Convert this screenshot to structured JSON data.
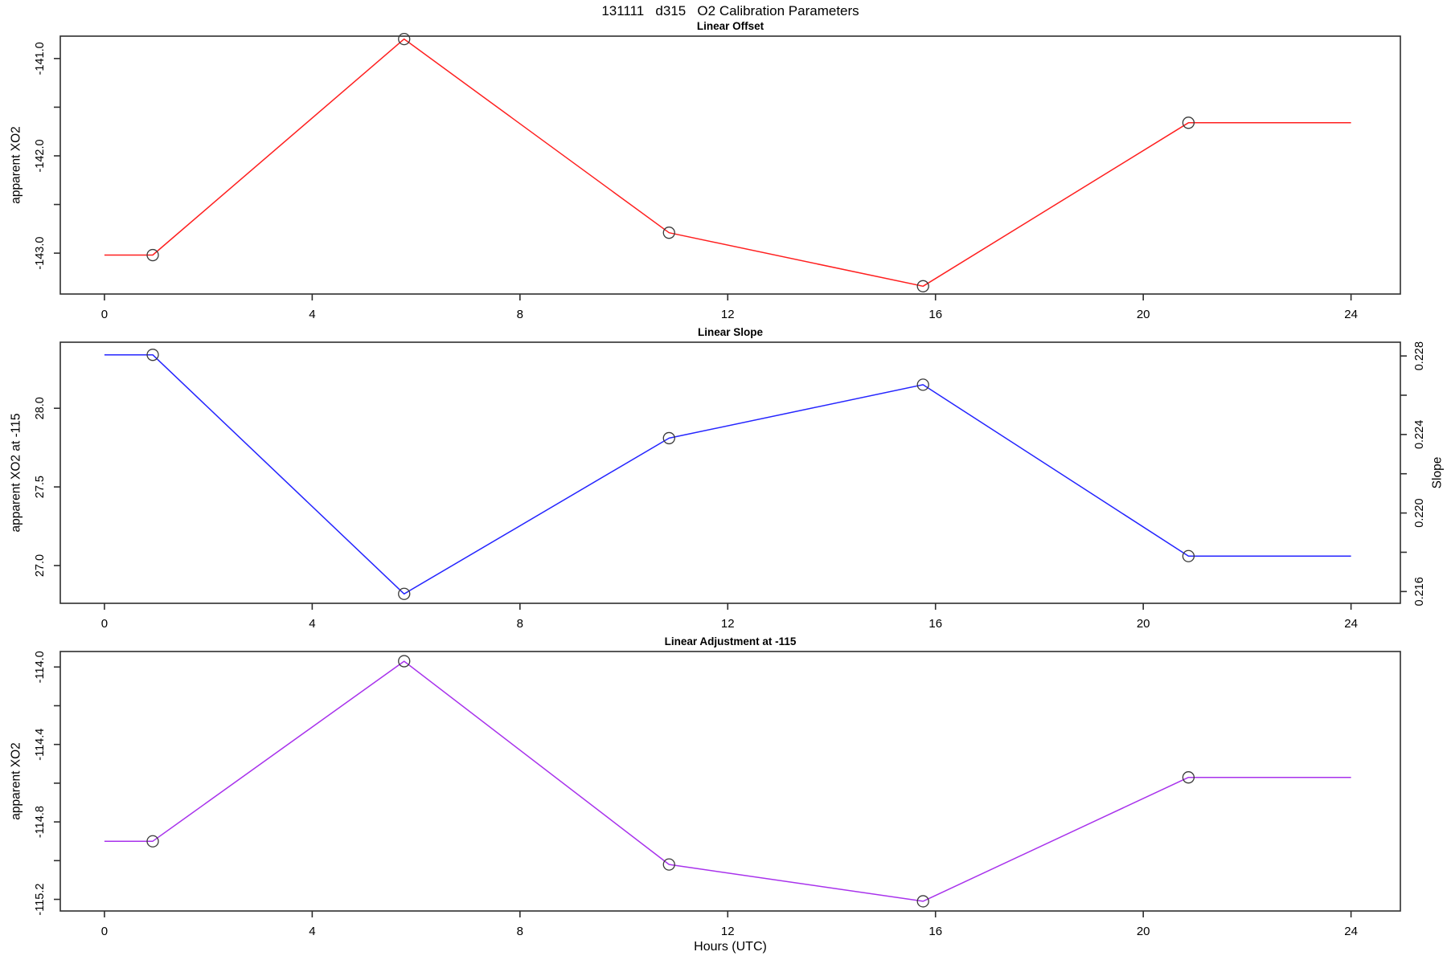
{
  "title": "131111   d315   O2 Calibration Parameters",
  "xlabel": "Hours (UTC)",
  "chart_data": [
    {
      "type": "line",
      "title": "Linear Offset",
      "ylabel": "apparent XO2",
      "color": "#ff1f1f",
      "marker": "open-circle",
      "x": [
        0,
        0.93,
        5.77,
        10.87,
        15.76,
        20.87,
        24
      ],
      "y": [
        -143.02,
        -143.02,
        -140.8,
        -142.79,
        -143.34,
        -141.66,
        -141.66
      ],
      "markers": [
        false,
        true,
        true,
        true,
        true,
        true,
        false
      ],
      "xlim": [
        -0.85,
        24.95
      ],
      "ylim": [
        -143.42,
        -140.77
      ],
      "xticks": [
        0,
        4,
        8,
        12,
        16,
        20,
        24
      ],
      "yticks": [
        {
          "v": -141.0,
          "label": "-141.0"
        },
        {
          "v": -142.0,
          "label": "-142.0"
        },
        {
          "v": -143.0,
          "label": "-143.0"
        }
      ],
      "yticks_minor": [
        -141.5,
        -142.5
      ],
      "grid": false,
      "legend": "none"
    },
    {
      "type": "line",
      "title": "Linear Slope",
      "ylabel": "apparent XO2 at -115",
      "color": "#2424ff",
      "marker": "open-circle",
      "x": [
        0,
        0.93,
        5.77,
        10.87,
        15.76,
        20.87,
        24
      ],
      "y": [
        28.34,
        28.34,
        26.82,
        27.81,
        28.15,
        27.06,
        27.06
      ],
      "markers": [
        false,
        true,
        true,
        true,
        true,
        true,
        false
      ],
      "xlim": [
        -0.85,
        24.95
      ],
      "ylim": [
        26.76,
        28.42
      ],
      "xticks": [
        0,
        4,
        8,
        12,
        16,
        20,
        24
      ],
      "yticks": [
        {
          "v": 28.0,
          "label": "28.0"
        },
        {
          "v": 27.5,
          "label": "27.5"
        },
        {
          "v": 27.0,
          "label": "27.0"
        }
      ],
      "yticks_minor": [],
      "right_axis": {
        "label": "Slope",
        "lim": [
          0.2154,
          0.2287
        ],
        "ticks": [
          {
            "v": 0.228,
            "label": "0.228"
          },
          {
            "v": 0.224,
            "label": "0.224"
          },
          {
            "v": 0.22,
            "label": "0.220"
          },
          {
            "v": 0.216,
            "label": "0.216"
          }
        ],
        "ticks_minor": [
          0.226,
          0.222,
          0.218
        ]
      },
      "grid": false,
      "legend": "none"
    },
    {
      "type": "line",
      "title": "Linear Adjustment at -115",
      "ylabel": "apparent XO2",
      "color": "#a832ec",
      "marker": "open-circle",
      "x": [
        0,
        0.93,
        5.77,
        10.87,
        15.76,
        20.87,
        24
      ],
      "y": [
        -114.9,
        -114.9,
        -113.97,
        -115.02,
        -115.21,
        -114.57,
        -114.57
      ],
      "markers": [
        false,
        true,
        true,
        true,
        true,
        true,
        false
      ],
      "xlim": [
        -0.85,
        24.95
      ],
      "ylim": [
        -115.26,
        -113.92
      ],
      "xticks": [
        0,
        4,
        8,
        12,
        16,
        20,
        24
      ],
      "yticks": [
        {
          "v": -114.0,
          "label": "-114.0"
        },
        {
          "v": -114.4,
          "label": "-114.4"
        },
        {
          "v": -114.8,
          "label": "-114.8"
        },
        {
          "v": -115.2,
          "label": "-115.2"
        }
      ],
      "yticks_minor": [
        -114.2,
        -114.6,
        -115.0
      ],
      "grid": false,
      "legend": "none"
    }
  ]
}
